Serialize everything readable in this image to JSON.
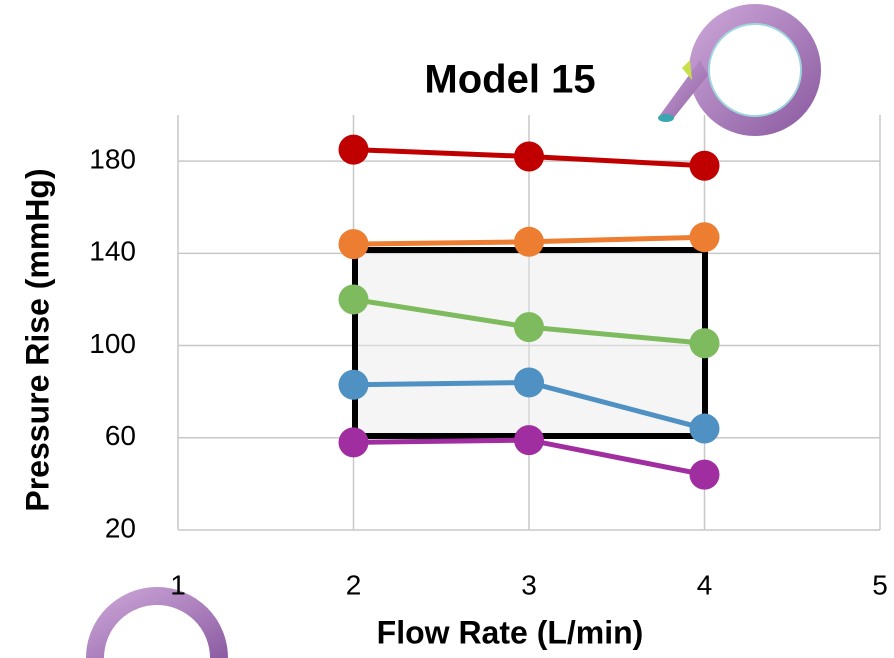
{
  "chart_data": {
    "type": "line",
    "title": "Model 15",
    "x_label": "Flow Rate (L/min)",
    "y_label": "Pressure Rise (mmHg)",
    "x": [
      2,
      3,
      4
    ],
    "series": [
      {
        "name": null,
        "color": "#c00000",
        "values": [
          185,
          182,
          178
        ]
      },
      {
        "name": null,
        "color": "#ed7d31",
        "values": [
          144,
          145,
          147
        ]
      },
      {
        "name": null,
        "color": "#7dbb5e",
        "values": [
          120,
          108,
          101
        ]
      },
      {
        "name": null,
        "color": "#4f91c2",
        "values": [
          83,
          84,
          64
        ]
      },
      {
        "name": null,
        "color": "#a02ea0",
        "values": [
          58,
          59,
          44
        ]
      }
    ],
    "xlim": [
      1,
      5
    ],
    "xticks": [
      1,
      2,
      3,
      4,
      5
    ],
    "ylim": [
      20,
      200
    ],
    "yticks": [
      20,
      60,
      100,
      140,
      180
    ],
    "grid": true
  }
}
